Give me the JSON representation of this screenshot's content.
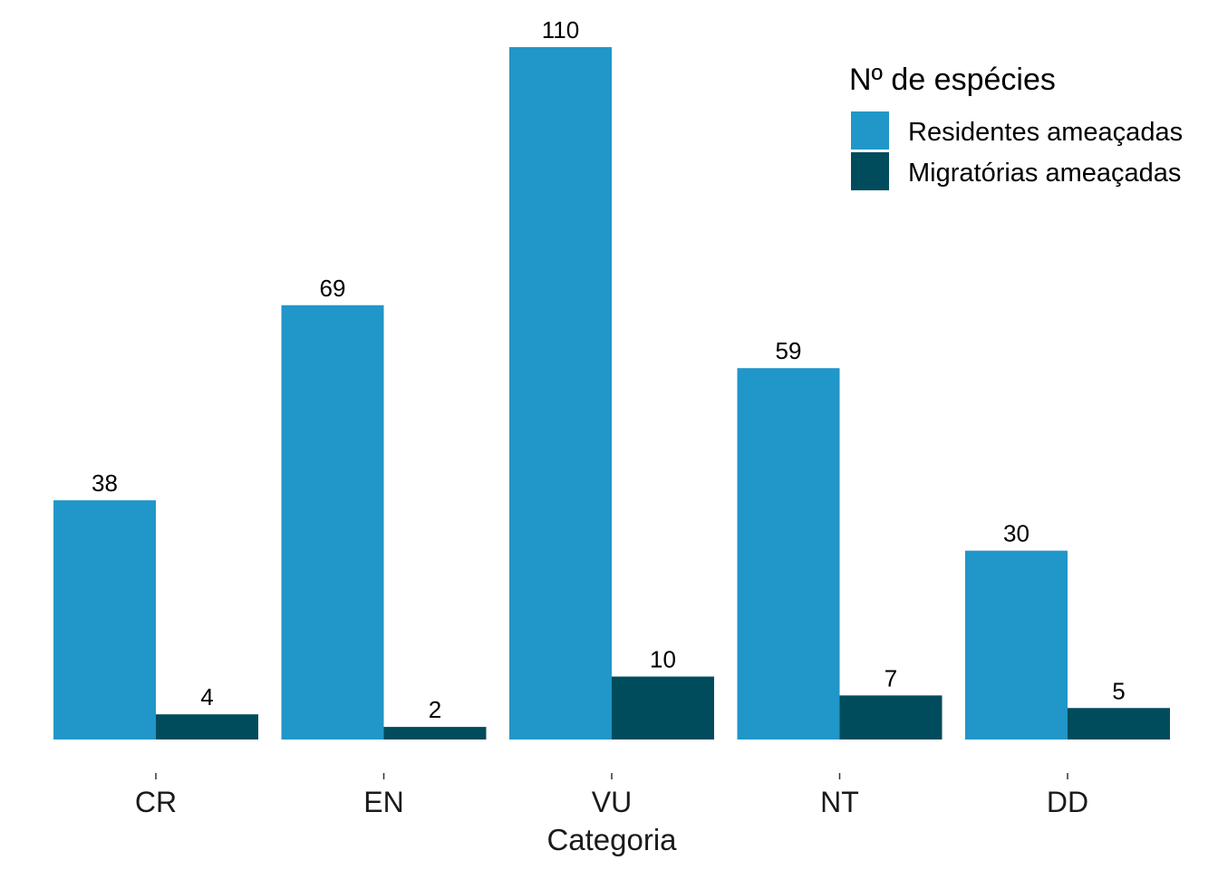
{
  "chart_data": {
    "type": "bar",
    "categories": [
      "CR",
      "EN",
      "VU",
      "NT",
      "DD"
    ],
    "series": [
      {
        "name": "Residentes ameaçadas",
        "values": [
          38,
          69,
          110,
          59,
          30
        ],
        "color": "#2196c8"
      },
      {
        "name": "Migratórias ameaçadas",
        "values": [
          4,
          2,
          10,
          7,
          5
        ],
        "color": "#004c5c"
      }
    ],
    "data_labels": true,
    "xlabel": "Categoria",
    "ylabel": "",
    "ylim": [
      0,
      110
    ],
    "y_axis_shown": false,
    "grid": false,
    "legend": {
      "title": "Nº de espécies",
      "position": "top-right"
    }
  }
}
